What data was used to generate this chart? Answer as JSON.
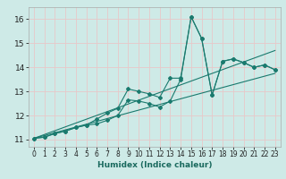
{
  "title": "",
  "xlabel": "Humidex (Indice chaleur)",
  "bg_color": "#ceeae7",
  "grid_color": "#e8c8c8",
  "line_color": "#1a7a6e",
  "xlim": [
    -0.5,
    23.5
  ],
  "ylim": [
    10.7,
    16.5
  ],
  "x_ticks": [
    0,
    1,
    2,
    3,
    4,
    5,
    6,
    7,
    8,
    9,
    10,
    11,
    12,
    13,
    14,
    15,
    16,
    17,
    18,
    19,
    20,
    21,
    22,
    23
  ],
  "y_ticks": [
    11,
    12,
    13,
    14,
    15,
    16
  ],
  "series1_x": [
    0,
    1,
    2,
    3,
    4,
    5,
    6,
    7,
    8,
    9,
    10,
    11,
    12,
    13,
    14,
    15,
    16,
    17,
    18,
    19,
    20,
    21,
    22,
    23
  ],
  "series1_y": [
    11.05,
    11.1,
    11.25,
    11.35,
    11.5,
    11.6,
    11.85,
    12.1,
    12.3,
    13.1,
    13.0,
    12.9,
    12.75,
    13.55,
    13.55,
    16.1,
    15.2,
    12.85,
    14.25,
    14.35,
    14.2,
    14.0,
    14.1,
    13.9
  ],
  "series2_x": [
    0,
    1,
    2,
    3,
    4,
    5,
    6,
    7,
    8,
    9,
    10,
    11,
    12,
    13,
    14,
    15,
    16,
    17,
    18,
    19,
    20,
    21,
    22,
    23
  ],
  "series2_y": [
    11.05,
    11.1,
    11.25,
    11.35,
    11.5,
    11.6,
    11.65,
    11.8,
    12.0,
    12.65,
    12.6,
    12.5,
    12.35,
    12.6,
    13.5,
    16.1,
    15.2,
    12.85,
    14.25,
    14.35,
    14.2,
    14.0,
    14.1,
    13.9
  ],
  "trend1_x": [
    0,
    23
  ],
  "trend1_y": [
    11.05,
    14.7
  ],
  "trend2_x": [
    0,
    23
  ],
  "trend2_y": [
    11.05,
    13.75
  ],
  "xlabel_color": "#1a6a5e",
  "xlabel_fontsize": 6.5,
  "tick_fontsize": 5.5,
  "ytick_fontsize": 6.5,
  "lw": 0.8,
  "marker_size": 2.0
}
